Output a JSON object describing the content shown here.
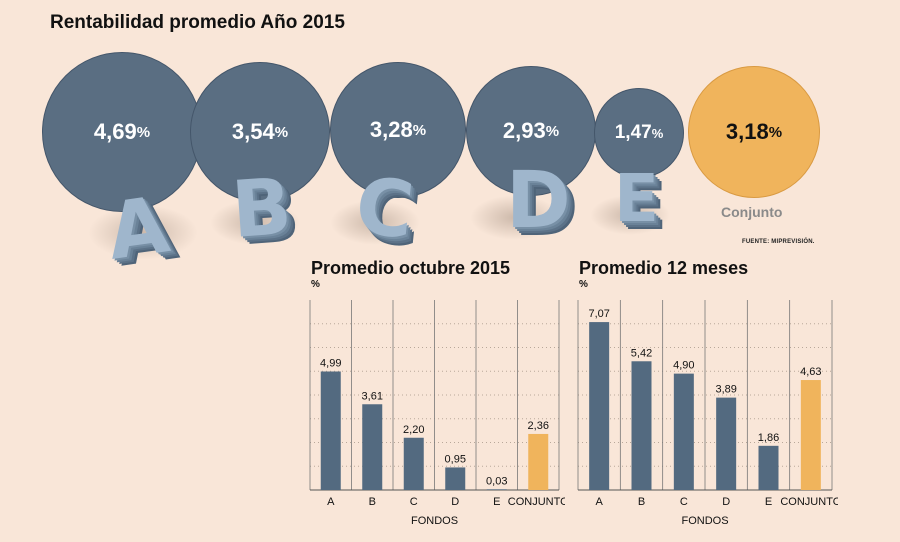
{
  "title": "Rentabilidad promedio Año 2015",
  "source": "FUENTE: MIPREVISIÓN.",
  "colors": {
    "fund": "#536a80",
    "conjunto": "#f0b45c",
    "background": "#f9e6d8"
  },
  "bubbles": [
    {
      "letter": "A",
      "value": "4,69",
      "unit": "%"
    },
    {
      "letter": "B",
      "value": "3,54",
      "unit": "%"
    },
    {
      "letter": "C",
      "value": "3,28",
      "unit": "%"
    },
    {
      "letter": "D",
      "value": "2,93",
      "unit": "%"
    },
    {
      "letter": "E",
      "value": "1,47",
      "unit": "%"
    },
    {
      "letter": "",
      "value": "3,18",
      "unit": "%",
      "label": "Conjunto"
    }
  ],
  "chart_data": [
    {
      "type": "bar",
      "title": "Promedio octubre 2015",
      "unit": "%",
      "xlabel": "FONDOS",
      "categories": [
        "A",
        "B",
        "C",
        "D",
        "E",
        "CONJUNTO"
      ],
      "values": [
        4.99,
        3.61,
        2.2,
        0.95,
        0.03,
        2.36
      ],
      "value_labels": [
        "4,99",
        "3,61",
        "2,20",
        "0,95",
        "0,03",
        "2,36"
      ],
      "ylim": [
        0,
        8
      ],
      "grid": true
    },
    {
      "type": "bar",
      "title": "Promedio 12 meses",
      "unit": "%",
      "xlabel": "FONDOS",
      "categories": [
        "A",
        "B",
        "C",
        "D",
        "E",
        "CONJUNTO"
      ],
      "values": [
        7.07,
        5.42,
        4.9,
        3.89,
        1.86,
        4.63
      ],
      "value_labels": [
        "7,07",
        "5,42",
        "4,90",
        "3,89",
        "1,86",
        "4,63"
      ],
      "ylim": [
        0,
        8
      ],
      "grid": true
    }
  ]
}
